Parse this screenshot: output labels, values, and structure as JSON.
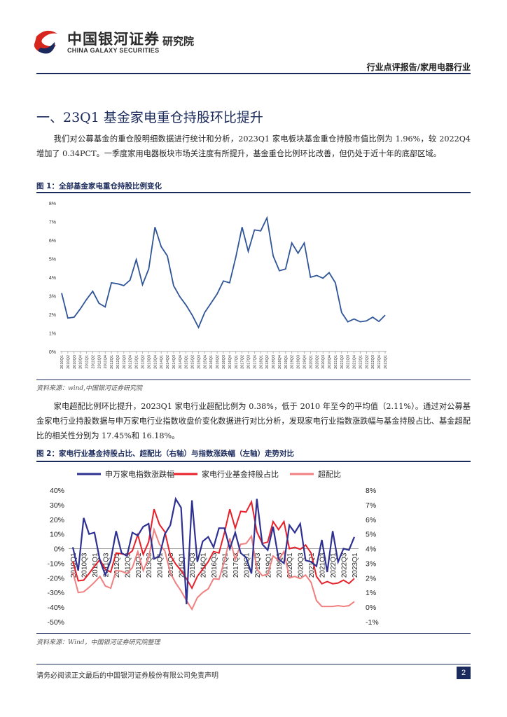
{
  "header": {
    "brand_cn": "中国银河证券",
    "brand_en": "CHINA GALAXY SECURITIES",
    "institute": "研究院",
    "report_type": "行业点评报告/家用电器行业"
  },
  "section": {
    "title": "一、23Q1 基金家电重仓持股环比提升",
    "para1": "我们对公募基金的重仓股明细数据进行统计和分析，2023Q1 家电板块基金重仓持股市值比例为 1.96%，较 2022Q4 增加了 0.34PCT。一季度家用电器板块市场关注度有所提升，基金重仓比例环比改善，但仍处于近十年的底部区域。",
    "para2": "家电超配比例环比提升，2023Q1 家电行业超配比例为 0.38%，低于 2010 年至今的平均值（2.11%）。通过对公募基金家电行业持股数据与申万家电行业指数收盘价变化数据进行对比分析，发现家电行业指数涨跌幅与基金持股占比、基金超配比的相关性分别为 17.45%和 16.18%。"
  },
  "figure1": {
    "title": "图 1：全部基金家电重仓持股比例变化",
    "source": "资料来源：wind,中国银河证券研究院"
  },
  "figure2": {
    "title": "图 2：家电行业基金持股占比、超配比（右轴）与指数涨跌幅（左轴）走势对比",
    "source": "资料来源：Wind，中国银河证券研究院整理"
  },
  "footer": {
    "disclaimer": "请务必阅读正文最后的中国银河证券股份有限公司免责声明",
    "page": "2"
  },
  "colors": {
    "navy": "#1b2a5c",
    "line1": "#2f5597",
    "index_line": "#2e3192",
    "holding_line": "#e8202a",
    "overweight_line": "#f08080"
  },
  "chart_data": [
    {
      "type": "line",
      "ylim": [
        0,
        8
      ],
      "yticks": [
        "0%",
        "1%",
        "2%",
        "3%",
        "4%",
        "5%",
        "6%",
        "7%",
        "8%"
      ],
      "x": [
        "2010Q1",
        "2010Q2",
        "2010Q3",
        "2010Q4",
        "2011Q1",
        "2011Q2",
        "2011Q3",
        "2011Q4",
        "2012Q1",
        "2012Q2",
        "2012Q3",
        "2012Q4",
        "2013Q1",
        "2013Q2",
        "2013Q3",
        "2013Q4",
        "2014Q1",
        "2014Q2",
        "2014Q3",
        "2014Q4",
        "2015Q1",
        "2015Q2",
        "2015Q3",
        "2015Q4",
        "2016Q1",
        "2016Q2",
        "2016Q3",
        "2016Q4",
        "2017Q1",
        "2017Q2",
        "2017Q3",
        "2017Q4",
        "2018Q1",
        "2018Q2",
        "2018Q3",
        "2018Q4",
        "2019Q1",
        "2019Q2",
        "2019Q3",
        "2019Q4",
        "2020Q1",
        "2020Q2",
        "2020Q3",
        "2020Q4",
        "2021Q1",
        "2021Q2",
        "2021Q3",
        "2021Q4",
        "2022Q1",
        "2022Q2",
        "2022Q3",
        "2022Q4",
        "2023Q1"
      ],
      "values": [
        3.15,
        1.8,
        1.85,
        2.3,
        2.8,
        3.25,
        2.6,
        2.4,
        3.7,
        3.65,
        3.55,
        3.85,
        4.95,
        3.6,
        4.45,
        6.7,
        5.65,
        5.15,
        3.55,
        2.95,
        2.5,
        1.95,
        1.3,
        2.1,
        2.6,
        3.1,
        3.8,
        3.7,
        5.1,
        6.7,
        5.4,
        6.55,
        6.5,
        7.2,
        5.15,
        4.35,
        4.45,
        5.85,
        5.3,
        5.85,
        4.0,
        4.1,
        3.95,
        4.25,
        3.7,
        2.1,
        1.6,
        1.75,
        1.6,
        1.65,
        1.85,
        1.62,
        1.96
      ]
    },
    {
      "type": "line",
      "legend": [
        "申万家电指数涨跌幅",
        "家电行业基金持股占比",
        "超配比"
      ],
      "legend_position": "top",
      "y_left": {
        "ylim": [
          -50,
          40
        ],
        "ticks": [
          "-50%",
          "-40%",
          "-30%",
          "-20%",
          "-10%",
          "0%",
          "10%",
          "20%",
          "30%",
          "40%"
        ]
      },
      "y_right": {
        "ylim": [
          -1,
          8
        ],
        "ticks": [
          "-1%",
          "0%",
          "1%",
          "2%",
          "3%",
          "4%",
          "5%",
          "6%",
          "7%",
          "8%"
        ]
      },
      "x": [
        "2010Q1",
        "2010Q2",
        "2010Q3",
        "2010Q4",
        "2011Q1",
        "2011Q2",
        "2011Q3",
        "2011Q4",
        "2012Q1",
        "2012Q2",
        "2012Q3",
        "2012Q4",
        "2013Q1",
        "2013Q2",
        "2013Q3",
        "2013Q4",
        "2014Q1",
        "2014Q2",
        "2014Q3",
        "2014Q4",
        "2015Q1",
        "2015Q2",
        "2015Q3",
        "2015Q4",
        "2016Q1",
        "2016Q2",
        "2016Q3",
        "2016Q4",
        "2017Q1",
        "2017Q2",
        "2017Q3",
        "2017Q4",
        "2018Q1",
        "2018Q2",
        "2018Q3",
        "2018Q4",
        "2019Q1",
        "2019Q2",
        "2019Q3",
        "2019Q4",
        "2020Q1",
        "2020Q2",
        "2020Q3",
        "2020Q4",
        "2021Q1",
        "2021Q2",
        "2021Q3",
        "2021Q4",
        "2022Q1",
        "2022Q2",
        "2022Q3",
        "2022Q4",
        "2023Q1"
      ],
      "xtick_labels": [
        "2010Q1",
        "2010Q3",
        "2011Q1",
        "2011Q3",
        "2012Q1",
        "2012Q3",
        "2013Q1",
        "2013Q3",
        "2014Q1",
        "2014Q3",
        "2015Q1",
        "2015Q3",
        "2016Q1",
        "2016Q3",
        "2017Q1",
        "2017Q3",
        "2018Q1",
        "2018Q3",
        "2019Q1",
        "2019Q3",
        "2020Q1",
        "2020Q3",
        "2021Q1",
        "2021Q3",
        "2022Q1",
        "2022Q3",
        "2023Q1"
      ],
      "series": [
        {
          "name": "申万家电指数涨跌幅",
          "axis": "left",
          "values": [
            1,
            -15,
            21,
            10,
            11,
            -8,
            -18,
            -8,
            12,
            -3,
            -5,
            11,
            9,
            15,
            17,
            -7,
            -5,
            10,
            16,
            34,
            28,
            -38,
            33,
            -9,
            5,
            8,
            1,
            14,
            14,
            0,
            11,
            -3,
            -6,
            -17,
            34,
            3,
            -1,
            15,
            -7,
            -10,
            16,
            11,
            17,
            -8,
            -9,
            -12,
            6,
            -16,
            12,
            -9,
            0,
            -1,
            8
          ]
        },
        {
          "name": "家电行业基金持股占比",
          "axis": "left_scaled_right",
          "values": [
            3.15,
            1.8,
            1.85,
            2.3,
            2.8,
            3.25,
            2.6,
            2.4,
            3.7,
            3.65,
            3.55,
            3.85,
            4.95,
            3.6,
            4.45,
            6.7,
            5.65,
            5.15,
            3.55,
            2.95,
            2.5,
            1.95,
            1.3,
            2.1,
            2.6,
            3.1,
            3.8,
            3.7,
            5.1,
            6.7,
            5.4,
            6.55,
            6.5,
            7.2,
            5.15,
            4.35,
            4.45,
            5.85,
            5.3,
            5.85,
            4.0,
            4.1,
            3.95,
            4.25,
            3.7,
            2.1,
            1.6,
            1.75,
            1.6,
            1.65,
            1.85,
            1.62,
            1.96
          ]
        },
        {
          "name": "超配比",
          "axis": "right",
          "values": [
            2.4,
            1.0,
            1.05,
            1.35,
            1.7,
            2.1,
            1.45,
            1.3,
            2.5,
            2.45,
            2.3,
            2.7,
            3.8,
            2.5,
            3.35,
            5.3,
            4.3,
            3.85,
            2.35,
            1.65,
            1.1,
            0.45,
            -0.15,
            0.65,
            1.0,
            1.25,
            1.95,
            1.9,
            3.15,
            4.7,
            3.25,
            4.3,
            4.35,
            4.85,
            2.6,
            2.15,
            2.25,
            3.5,
            3.2,
            3.8,
            2.0,
            2.1,
            1.95,
            2.2,
            1.7,
            0.45,
            0.05,
            0.05,
            0.05,
            0.1,
            0.05,
            0.1,
            0.38
          ]
        }
      ]
    }
  ]
}
